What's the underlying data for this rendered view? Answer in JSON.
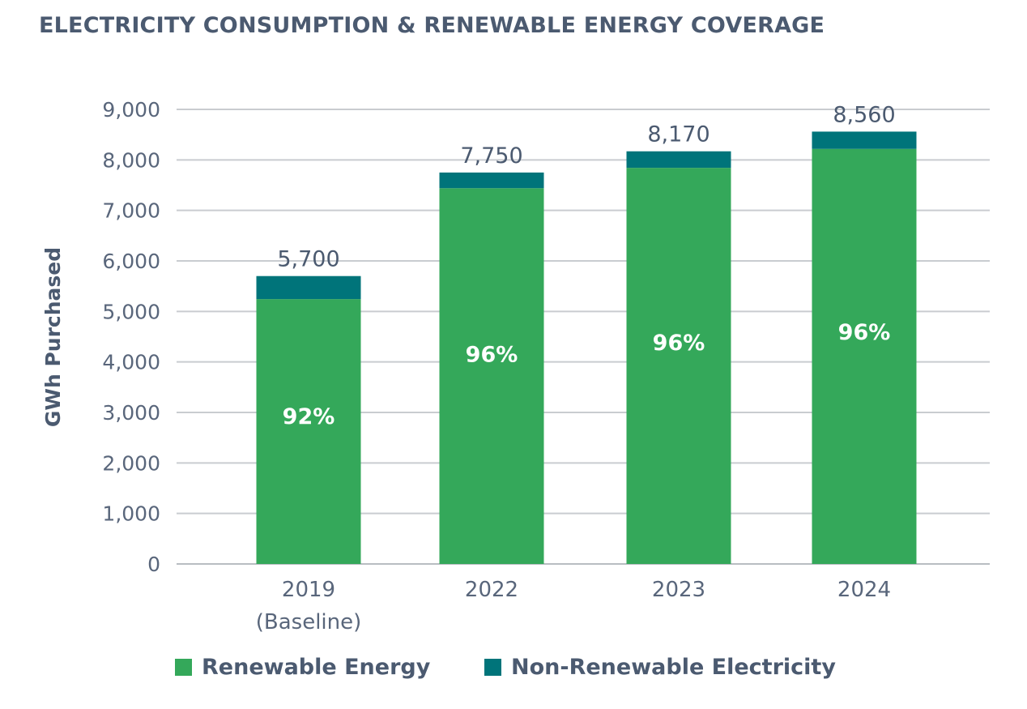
{
  "chart_data": {
    "type": "bar",
    "stacked": true,
    "title": "ELECTRICITY CONSUMPTION & RENEWABLE ENERGY COVERAGE",
    "ylabel": "GWh Purchased",
    "xlabel": "",
    "ylim": [
      0,
      9000
    ],
    "yticks": [
      0,
      1000,
      2000,
      3000,
      4000,
      5000,
      6000,
      7000,
      8000,
      9000
    ],
    "ytick_labels": [
      "0",
      "1,000",
      "2,000",
      "3,000",
      "4,000",
      "5,000",
      "6,000",
      "7,000",
      "8,000",
      "9,000"
    ],
    "grid": true,
    "legend_position": "bottom",
    "categories": [
      {
        "label": "2019",
        "sublabel": "(Baseline)"
      },
      {
        "label": "2022",
        "sublabel": ""
      },
      {
        "label": "2023",
        "sublabel": ""
      },
      {
        "label": "2024",
        "sublabel": ""
      }
    ],
    "series": [
      {
        "name": "Renewable Energy",
        "color": "#34a85a",
        "values": [
          5244,
          7440,
          7843,
          8218
        ]
      },
      {
        "name": "Non-Renewable Electricity",
        "color": "#00747a",
        "values": [
          456,
          310,
          327,
          342
        ]
      }
    ],
    "totals": [
      5700,
      7750,
      8170,
      8560
    ],
    "total_labels": [
      "5,700",
      "7,750",
      "8,170",
      "8,560"
    ],
    "percent_labels": [
      "92%",
      "96%",
      "96%",
      "96%"
    ]
  }
}
